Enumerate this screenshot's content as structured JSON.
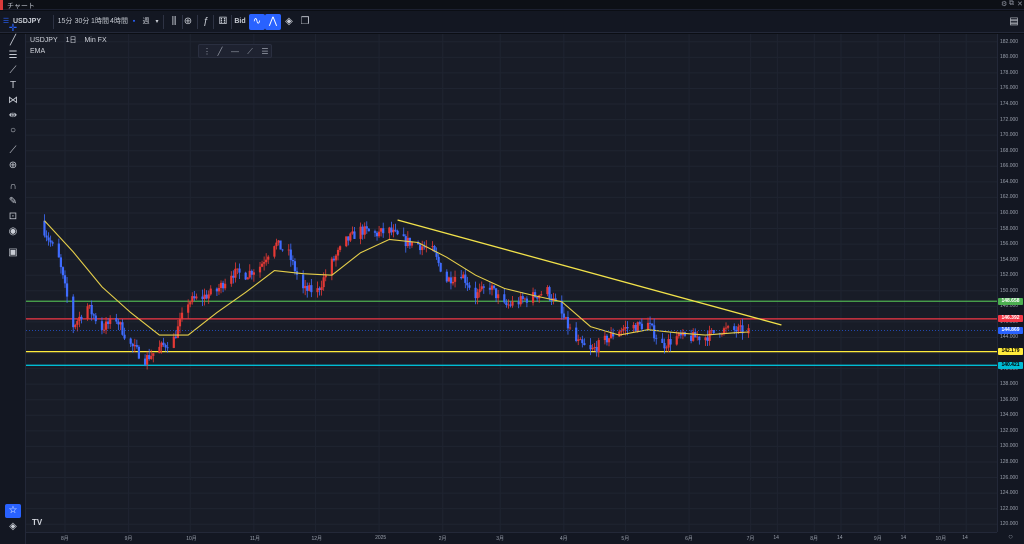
{
  "window": {
    "title": "チャート",
    "controls": [
      "⚙",
      "⧉",
      "✕"
    ]
  },
  "toolbar": {
    "symbol": "USDJPY",
    "intervals": [
      "15分",
      "30分",
      "1時間",
      "4時間",
      "週"
    ],
    "bid_label": "Bid"
  },
  "legend": {
    "symbol": "USDJPY",
    "interval": "1日",
    "source": "Min FX",
    "indicator": "EMA"
  },
  "colors": {
    "up": "#e53935",
    "down": "#3f6cff",
    "ema": "#e6cf4a",
    "green_line": "#4caf50",
    "red_line": "#f23645",
    "yellow_line": "#ffeb3b",
    "cyan_line": "#00bcd4",
    "trendline": "#f2e24a",
    "current": "#2962ff"
  },
  "price_axis": {
    "ticks": [
      "182.000",
      "180.000",
      "178.000",
      "176.000",
      "174.000",
      "172.000",
      "170.000",
      "168.000",
      "166.000",
      "164.000",
      "162.000",
      "160.000",
      "158.000",
      "156.000",
      "154.000",
      "152.000",
      "150.000",
      "148.000",
      "146.000",
      "144.000",
      "142.000",
      "140.000",
      "138.000",
      "136.000",
      "134.000",
      "132.000",
      "130.000",
      "128.000",
      "126.000",
      "124.000",
      "122.000",
      "120.000"
    ],
    "badges": [
      {
        "label": "148.658",
        "value": 148.658,
        "color": "#4caf50",
        "text": "#ffffff"
      },
      {
        "label": "146.392",
        "value": 146.392,
        "color": "#f23645",
        "text": "#ffffff"
      },
      {
        "label": "144.869",
        "value": 144.869,
        "color": "#2962ff",
        "text": "#ffffff"
      },
      {
        "label": "142.179",
        "value": 142.179,
        "color": "#ffeb3b",
        "text": "#000000"
      },
      {
        "label": "140.421",
        "value": 140.421,
        "color": "#00bcd4",
        "text": "#000000"
      }
    ]
  },
  "time_axis": [
    "8月",
    "9月",
    "10月",
    "11月",
    "12月",
    "2025",
    "2月",
    "3月",
    "4月",
    "5月",
    "6月",
    "7月",
    "14",
    "8月",
    "14",
    "9月",
    "14",
    "10月",
    "14"
  ],
  "chart_data": {
    "type": "candlestick",
    "symbol": "USDJPY",
    "interval": "1日",
    "ylim": [
      119,
      183
    ],
    "levels": [
      {
        "value": 148.658,
        "color": "#4caf50"
      },
      {
        "value": 146.392,
        "color": "#f23645"
      },
      {
        "value": 142.179,
        "color": "#ffeb3b"
      },
      {
        "value": 140.421,
        "color": "#00bcd4"
      }
    ],
    "trendline": {
      "from": {
        "date": "2025-01-10",
        "price": 159.1
      },
      "to": {
        "date": "2025-07-16",
        "price": 145.6
      }
    },
    "current_price": 144.869,
    "path": [
      [
        "2024-07-22",
        157.8
      ],
      [
        "2024-07-29",
        154.0
      ],
      [
        "2024-08-05",
        145.5
      ],
      [
        "2024-08-12",
        148.0
      ],
      [
        "2024-08-19",
        145.2
      ],
      [
        "2024-08-26",
        146.4
      ],
      [
        "2024-09-02",
        143.0
      ],
      [
        "2024-09-09",
        141.2
      ],
      [
        "2024-09-16",
        142.6
      ],
      [
        "2024-09-23",
        143.8
      ],
      [
        "2024-09-30",
        148.6
      ],
      [
        "2024-10-07",
        149.2
      ],
      [
        "2024-10-14",
        150.0
      ],
      [
        "2024-10-21",
        152.3
      ],
      [
        "2024-10-28",
        152.1
      ],
      [
        "2024-11-04",
        153.2
      ],
      [
        "2024-11-11",
        156.2
      ],
      [
        "2024-11-18",
        154.7
      ],
      [
        "2024-11-25",
        150.1
      ],
      [
        "2024-12-02",
        150.0
      ],
      [
        "2024-12-09",
        153.6
      ],
      [
        "2024-12-16",
        156.4
      ],
      [
        "2024-12-23",
        157.8
      ],
      [
        "2024-12-30",
        157.3
      ],
      [
        "2025-01-06",
        157.7
      ],
      [
        "2025-01-13",
        156.4
      ],
      [
        "2025-01-20",
        156.0
      ],
      [
        "2025-01-27",
        155.1
      ],
      [
        "2025-02-03",
        151.4
      ],
      [
        "2025-02-10",
        152.3
      ],
      [
        "2025-02-17",
        149.4
      ],
      [
        "2025-02-24",
        150.6
      ],
      [
        "2025-03-03",
        148.0
      ],
      [
        "2025-03-10",
        148.6
      ],
      [
        "2025-03-17",
        149.3
      ],
      [
        "2025-03-24",
        150.0
      ],
      [
        "2025-03-31",
        146.9
      ],
      [
        "2025-04-07",
        143.5
      ],
      [
        "2025-04-14",
        142.2
      ],
      [
        "2025-04-21",
        143.6
      ],
      [
        "2025-04-28",
        145.0
      ],
      [
        "2025-05-05",
        145.4
      ],
      [
        "2025-05-12",
        145.7
      ],
      [
        "2025-05-19",
        143.0
      ],
      [
        "2025-05-26",
        144.0
      ],
      [
        "2025-06-02",
        144.0
      ],
      [
        "2025-06-09",
        144.1
      ],
      [
        "2025-06-16",
        145.0
      ],
      [
        "2025-06-23",
        144.9
      ],
      [
        "2025-06-30",
        144.9
      ]
    ],
    "ema": [
      [
        "2024-07-22",
        159.0
      ],
      [
        "2024-08-05",
        155.0
      ],
      [
        "2024-08-19",
        150.5
      ],
      [
        "2024-09-02",
        147.2
      ],
      [
        "2024-09-16",
        144.3
      ],
      [
        "2024-09-30",
        144.3
      ],
      [
        "2024-10-14",
        147.2
      ],
      [
        "2024-10-28",
        149.8
      ],
      [
        "2024-11-11",
        152.6
      ],
      [
        "2024-11-25",
        152.2
      ],
      [
        "2024-12-09",
        152.0
      ],
      [
        "2024-12-23",
        154.9
      ],
      [
        "2025-01-06",
        156.6
      ],
      [
        "2025-01-20",
        156.2
      ],
      [
        "2025-02-03",
        154.3
      ],
      [
        "2025-02-17",
        152.0
      ],
      [
        "2025-03-03",
        150.3
      ],
      [
        "2025-03-17",
        149.4
      ],
      [
        "2025-03-31",
        148.6
      ],
      [
        "2025-04-14",
        145.4
      ],
      [
        "2025-04-28",
        144.3
      ],
      [
        "2025-05-12",
        145.0
      ],
      [
        "2025-05-26",
        144.6
      ],
      [
        "2025-06-09",
        144.3
      ],
      [
        "2025-06-23",
        144.6
      ],
      [
        "2025-06-30",
        144.7
      ]
    ]
  }
}
